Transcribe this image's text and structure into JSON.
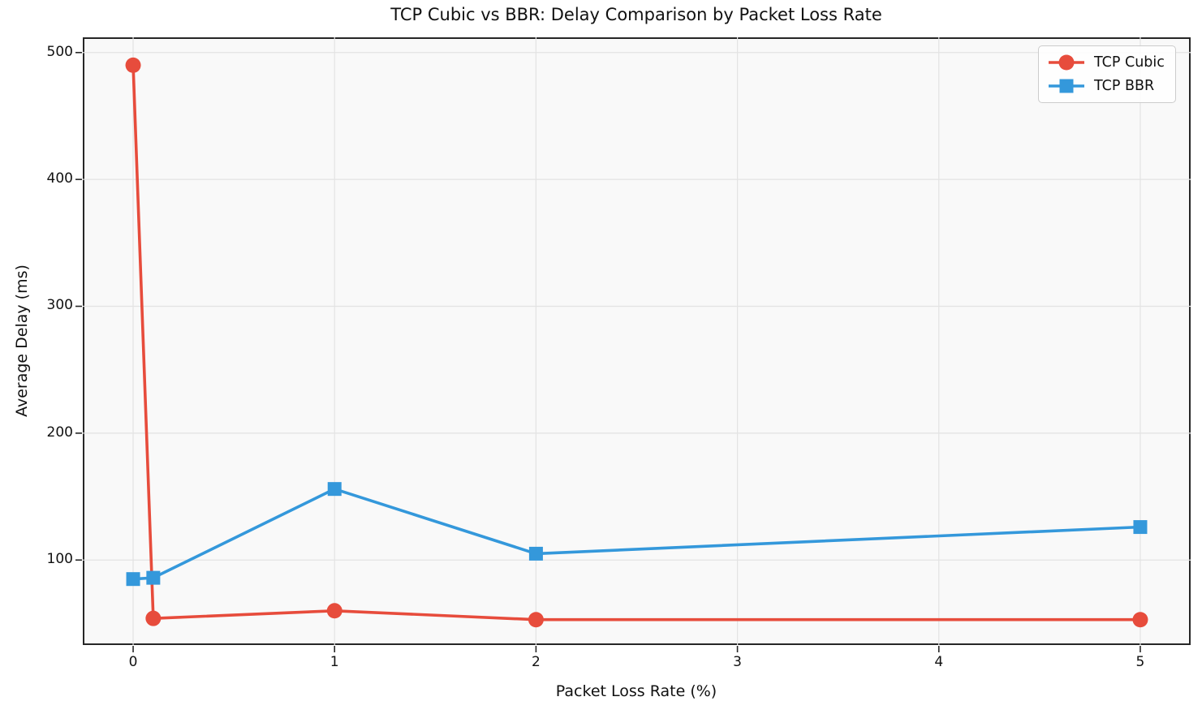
{
  "chart_data": {
    "type": "line",
    "title": "TCP Cubic vs BBR: Delay Comparison by Packet Loss Rate",
    "xlabel": "Packet Loss Rate (%)",
    "ylabel": "Average Delay (ms)",
    "x": [
      0,
      0.1,
      1,
      2,
      5
    ],
    "series": [
      {
        "name": "TCP Cubic",
        "color": "#e74c3c",
        "marker": "circle",
        "values": [
          490,
          54,
          60,
          53,
          53
        ]
      },
      {
        "name": "TCP BBR",
        "color": "#3498db",
        "marker": "square",
        "values": [
          85,
          86,
          156,
          105,
          126
        ]
      }
    ],
    "x_ticks": [
      0,
      1,
      2,
      3,
      4,
      5
    ],
    "y_ticks": [
      100,
      200,
      300,
      400,
      500
    ],
    "xlim": [
      -0.25,
      5.25
    ],
    "ylim": [
      33,
      512
    ],
    "grid": true,
    "legend_position": "upper right",
    "colors": {
      "grid": "#e3e3e3",
      "spine": "#262626",
      "plot_bg": "#f9f9f9",
      "text": "#111111"
    }
  }
}
